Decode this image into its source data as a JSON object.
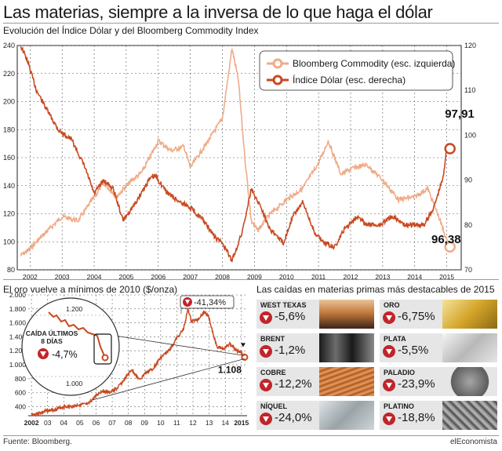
{
  "header": {
    "title": "Las materias, siempre a la inversa de lo que haga el dólar",
    "subtitle": "Evolución del Índice Dólar y del Bloomberg Commodity Index"
  },
  "colors": {
    "commodity": "#efab88",
    "dollar": "#c84a22",
    "gold_line": "#c84a22",
    "alert_red": "#c0252b",
    "panel_bg": "#e6e6e6"
  },
  "chart_data": [
    {
      "type": "line",
      "title": "",
      "x_ticks": [
        "2002",
        "2003",
        "2004",
        "2005",
        "2006",
        "2007",
        "2008",
        "2009",
        "2010",
        "2011",
        "2012",
        "2013",
        "2014",
        "2015"
      ],
      "y_left_ticks": [
        80,
        100,
        120,
        140,
        160,
        180,
        200,
        220,
        240
      ],
      "y_left_lim": [
        80,
        240
      ],
      "y_right_ticks": [
        70,
        80,
        90,
        100,
        110,
        120
      ],
      "y_right_lim": [
        70,
        120
      ],
      "grid": true,
      "legend_position": "top-right",
      "series": [
        {
          "name": "Bloomberg Commodity (esc. izquierda)",
          "axis": "left",
          "x": [
            2001.7,
            2002.0,
            2002.5,
            2003.0,
            2003.5,
            2004.0,
            2004.3,
            2004.7,
            2005.0,
            2005.5,
            2006.0,
            2006.4,
            2006.8,
            2007.0,
            2007.5,
            2008.0,
            2008.3,
            2008.5,
            2008.7,
            2008.9,
            2009.1,
            2009.5,
            2010.0,
            2010.5,
            2011.0,
            2011.3,
            2011.7,
            2012.0,
            2012.5,
            2013.0,
            2013.5,
            2014.0,
            2014.4,
            2014.7,
            2015.0,
            2015.1
          ],
          "y": [
            90,
            95,
            107,
            118,
            115,
            132,
            142,
            132,
            140,
            150,
            172,
            165,
            168,
            153,
            170,
            188,
            238,
            215,
            160,
            115,
            108,
            120,
            130,
            138,
            156,
            172,
            148,
            152,
            155,
            144,
            130,
            132,
            138,
            121,
            101,
            98
          ]
        },
        {
          "name": "Índice Dólar (esc. derecha)",
          "axis": "right",
          "x": [
            2001.7,
            2001.9,
            2002.2,
            2002.5,
            2002.9,
            2003.3,
            2003.7,
            2004.0,
            2004.3,
            2004.6,
            2004.9,
            2005.3,
            2005.7,
            2005.9,
            2006.3,
            2006.7,
            2007.0,
            2007.4,
            2007.8,
            2008.0,
            2008.3,
            2008.6,
            2008.9,
            2009.2,
            2009.5,
            2009.9,
            2010.2,
            2010.5,
            2010.9,
            2011.2,
            2011.5,
            2011.8,
            2012.2,
            2012.5,
            2012.9,
            2013.3,
            2013.7,
            2014.0,
            2014.3,
            2014.6,
            2014.9,
            2015.0,
            2015.1
          ],
          "y": [
            120,
            117,
            110,
            106,
            101,
            99,
            93,
            87,
            90,
            88,
            81,
            85,
            90,
            91,
            87,
            85,
            84,
            81,
            77,
            76,
            72,
            78,
            88,
            84,
            79,
            76,
            82,
            85,
            78,
            76,
            75,
            79,
            82,
            80,
            80,
            82,
            80,
            80,
            80,
            84,
            91,
            97.91,
            97
          ]
        }
      ],
      "annotations": [
        "97,91",
        "96,38"
      ]
    },
    {
      "type": "line",
      "title": "El oro vuelve a mínimos de 2010 ($/onza)",
      "x_ticks": [
        "2002",
        "03",
        "04",
        "05",
        "06",
        "07",
        "08",
        "09",
        "10",
        "11",
        "12",
        "13",
        "14",
        "2015"
      ],
      "y_ticks": [
        "2.000",
        "1.800",
        "1.600",
        "1.400",
        "1.200",
        "1.000",
        "800",
        "600",
        "400"
      ],
      "y_lim": [
        270,
        2000
      ],
      "series": [
        {
          "name": "",
          "x": [
            2002.0,
            2002.5,
            2003.0,
            2003.5,
            2004.0,
            2004.5,
            2005.0,
            2005.5,
            2006.0,
            2006.4,
            2006.8,
            2007.3,
            2007.8,
            2008.2,
            2008.7,
            2009.0,
            2009.5,
            2010.0,
            2010.5,
            2011.0,
            2011.4,
            2011.7,
            2011.9,
            2012.3,
            2012.7,
            2013.0,
            2013.3,
            2013.5,
            2013.9,
            2014.3,
            2014.7,
            2015.0,
            2015.2
          ],
          "y": [
            280,
            310,
            340,
            360,
            400,
            400,
            430,
            430,
            560,
            630,
            600,
            660,
            800,
            930,
            780,
            870,
            940,
            1100,
            1200,
            1380,
            1500,
            1800,
            1620,
            1650,
            1760,
            1670,
            1400,
            1260,
            1230,
            1300,
            1200,
            1180,
            1108
          ]
        }
      ],
      "annotations": [
        "-41,34%",
        "1.108"
      ],
      "inset": {
        "title": "CAÍDA ÚLTIMOS 8 DÍAS",
        "change": "-4,7%",
        "y_ticks": [
          "1.200",
          "1.000"
        ]
      }
    }
  ],
  "falls": {
    "title": "Las caídas en materias primas más destacables de 2015",
    "items": [
      {
        "name": "WEST TEXAS",
        "change": "-5,6%"
      },
      {
        "name": "ORO",
        "change": "-6,75%"
      },
      {
        "name": "BRENT",
        "change": "-1,2%"
      },
      {
        "name": "PLATA",
        "change": "-5,5%"
      },
      {
        "name": "COBRE",
        "change": "-12,2%"
      },
      {
        "name": "PALADIO",
        "change": "-23,9%"
      },
      {
        "name": "NÍQUEL",
        "change": "-24,0%"
      },
      {
        "name": "PLATINO",
        "change": "-18,8%"
      }
    ]
  },
  "footer": {
    "source": "Fuente: Bloomberg.",
    "brand": "elEconomista"
  }
}
